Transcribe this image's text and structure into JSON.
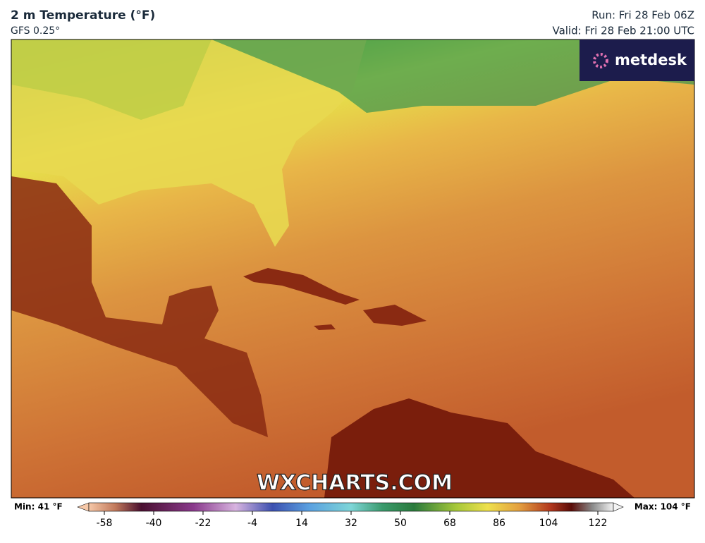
{
  "header": {
    "title": "2 m Temperature (°F)",
    "subtitle": "GFS 0.25°",
    "run": "Run: Fri 28 Feb 06Z",
    "valid": "Valid: Fri 28 Feb 21:00 UTC"
  },
  "logo": "metdesk",
  "watermark": "WXCHARTS.COM",
  "colorbar": {
    "min_label": "Min: 41 °F",
    "max_label": "Max: 104 °F",
    "ticks": [
      -58,
      -40,
      -22,
      -4,
      14,
      32,
      50,
      68,
      86,
      104,
      122
    ]
  }
}
